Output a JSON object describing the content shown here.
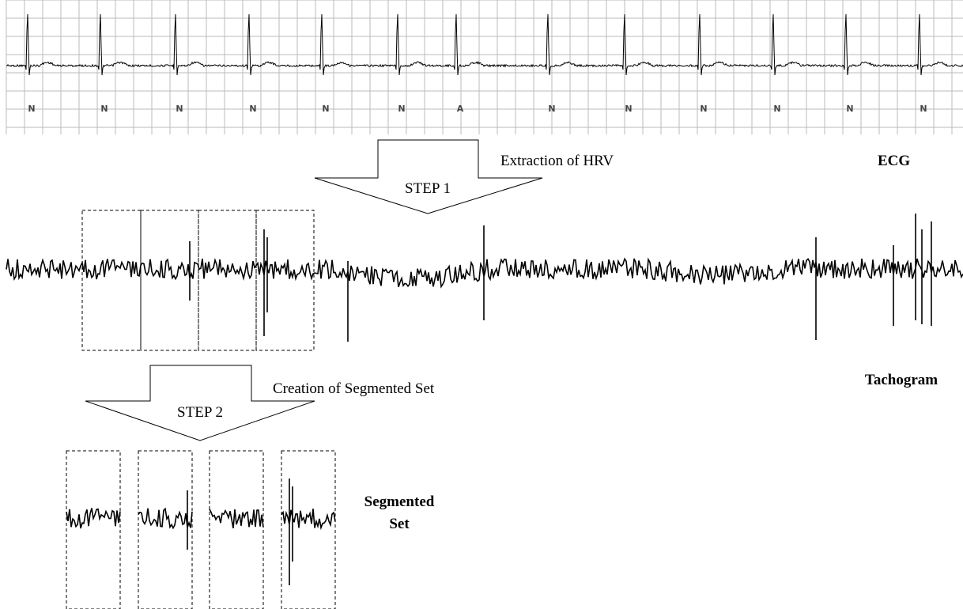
{
  "ecg": {
    "label": "ECG",
    "beats": [
      "N",
      "N",
      "N",
      "N",
      "N",
      "N",
      "A",
      "N",
      "N",
      "N",
      "N",
      "N",
      "N"
    ]
  },
  "step1": {
    "label": "STEP 1",
    "caption": "Extraction of HRV"
  },
  "tachogram": {
    "label": "Tachogram"
  },
  "step2": {
    "label": "STEP 2",
    "caption": "Creation of Segmented Set"
  },
  "segmented": {
    "label_lines": [
      "Segmented",
      "Set"
    ]
  }
}
